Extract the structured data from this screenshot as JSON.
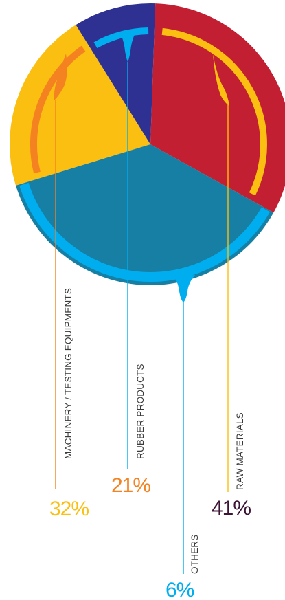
{
  "chart_data": {
    "type": "pie",
    "categories": [
      "MACHINERY / TESTING EQUIPMENTS",
      "RUBBER PRODUCTS",
      "RAW MATERIALS",
      "OTHERS"
    ],
    "values": [
      32,
      21,
      41,
      6
    ],
    "value_labels": [
      "32%",
      "21%",
      "41%",
      "6%"
    ],
    "colors": {
      "slice_yellow": "#fbbf12",
      "slice_navy": "#2e3192",
      "slice_red": "#c21f33",
      "slice_teal": "#167fa3",
      "ring_orange": "#f58220",
      "ring_cyan": "#00aeef",
      "ring_yellow": "#fbbf12",
      "pct_machinery": "#fbbf12",
      "pct_rubber": "#f58220",
      "pct_raw": "#3d1435",
      "pct_others": "#00aeef",
      "line_machinery": "#f58220",
      "line_rubber": "#00aeef",
      "line_raw": "#fbbf12",
      "line_others": "#00aeef"
    },
    "legend": "none",
    "grid": false
  }
}
